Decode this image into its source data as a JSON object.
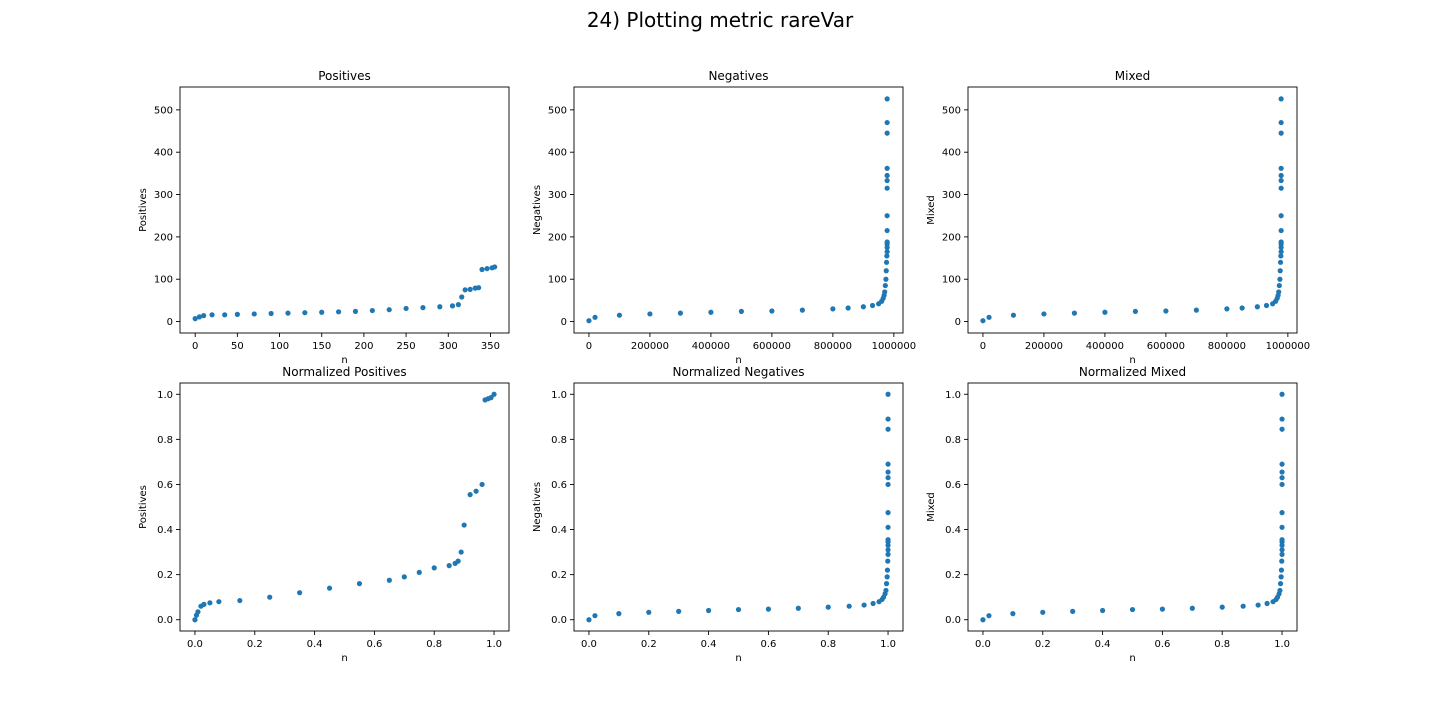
{
  "figure": {
    "suptitle": "24) Plotting metric rareVar",
    "marker_color": "#1f77b4"
  },
  "chart_data": [
    {
      "type": "scatter",
      "title": "Positives",
      "xlabel": "n",
      "ylabel": "Positives",
      "xlim": [
        -18,
        372
      ],
      "ylim": [
        -27,
        554
      ],
      "xticks": [
        0,
        50,
        100,
        150,
        200,
        250,
        300,
        350
      ],
      "xticklabels": [
        "0",
        "50",
        "100",
        "150",
        "200",
        "250",
        "300",
        "350"
      ],
      "yticks": [
        0,
        100,
        200,
        300,
        400,
        500
      ],
      "yticklabels": [
        "0",
        "100",
        "200",
        "300",
        "400",
        "500"
      ],
      "x": [
        0,
        5,
        10,
        20,
        35,
        50,
        70,
        90,
        110,
        130,
        150,
        170,
        190,
        210,
        230,
        250,
        270,
        290,
        305,
        312,
        316,
        320,
        326,
        332,
        336,
        340,
        346,
        352,
        355
      ],
      "y": [
        7,
        11,
        14,
        16,
        16,
        17,
        18,
        19,
        20,
        21,
        22,
        23,
        24,
        26,
        28,
        31,
        33,
        35,
        37,
        40,
        58,
        75,
        76,
        79,
        80,
        123,
        125,
        127,
        129
      ]
    },
    {
      "type": "scatter",
      "title": "Negatives",
      "xlabel": "n",
      "ylabel": "Negatives",
      "xlim": [
        -49000,
        1030000
      ],
      "ylim": [
        -27,
        554
      ],
      "xticks": [
        0,
        200000,
        400000,
        600000,
        800000,
        1000000
      ],
      "xticklabels": [
        "0",
        "200000",
        "400000",
        "600000",
        "800000",
        "1000000"
      ],
      "yticks": [
        0,
        100,
        200,
        300,
        400,
        500
      ],
      "yticklabels": [
        "0",
        "100",
        "200",
        "300",
        "400",
        "500"
      ],
      "x": [
        0,
        20000,
        100000,
        200000,
        300000,
        400000,
        500000,
        600000,
        700000,
        800000,
        850000,
        900000,
        930000,
        950000,
        960000,
        965000,
        968000,
        970000,
        972000,
        974000,
        975000,
        976000,
        977000,
        978000,
        978000,
        978000,
        978000,
        978000,
        978000,
        978000,
        978000,
        978000,
        978000,
        978000,
        978000,
        978000
      ],
      "y": [
        2,
        10,
        15,
        18,
        20,
        22,
        24,
        25,
        27,
        30,
        32,
        35,
        38,
        42,
        48,
        55,
        62,
        70,
        85,
        100,
        120,
        140,
        155,
        165,
        175,
        183,
        188,
        215,
        250,
        315,
        333,
        345,
        362,
        445,
        470,
        526
      ]
    },
    {
      "type": "scatter",
      "title": "Mixed",
      "xlabel": "n",
      "ylabel": "Mixed",
      "xlim": [
        -49000,
        1030000
      ],
      "ylim": [
        -27,
        554
      ],
      "xticks": [
        0,
        200000,
        400000,
        600000,
        800000,
        1000000
      ],
      "xticklabels": [
        "0",
        "200000",
        "400000",
        "600000",
        "800000",
        "1000000"
      ],
      "yticks": [
        0,
        100,
        200,
        300,
        400,
        500
      ],
      "yticklabels": [
        "0",
        "100",
        "200",
        "300",
        "400",
        "500"
      ],
      "x": [
        0,
        20000,
        100000,
        200000,
        300000,
        400000,
        500000,
        600000,
        700000,
        800000,
        850000,
        900000,
        930000,
        950000,
        960000,
        965000,
        968000,
        970000,
        972000,
        974000,
        975000,
        976000,
        977000,
        978000,
        978000,
        978000,
        978000,
        978000,
        978000,
        978000,
        978000,
        978000,
        978000,
        978000,
        978000,
        978000
      ],
      "y": [
        2,
        10,
        15,
        18,
        20,
        22,
        24,
        25,
        27,
        30,
        32,
        35,
        38,
        42,
        48,
        55,
        62,
        70,
        85,
        100,
        120,
        140,
        155,
        165,
        175,
        183,
        188,
        215,
        250,
        315,
        333,
        345,
        362,
        445,
        470,
        526
      ]
    },
    {
      "type": "scatter",
      "title": "Normalized Positives",
      "xlabel": "n",
      "ylabel": "Positives",
      "xlim": [
        -0.05,
        1.05
      ],
      "ylim": [
        -0.05,
        1.05
      ],
      "xticks": [
        0,
        0.2,
        0.4,
        0.6,
        0.8,
        1
      ],
      "xticklabels": [
        "0.0",
        "0.2",
        "0.4",
        "0.6",
        "0.8",
        "1.0"
      ],
      "yticks": [
        0,
        0.2,
        0.4,
        0.6,
        0.8,
        1
      ],
      "yticklabels": [
        "0.0",
        "0.2",
        "0.4",
        "0.6",
        "0.8",
        "1.0"
      ],
      "x": [
        0.0,
        0.005,
        0.01,
        0.02,
        0.03,
        0.05,
        0.08,
        0.15,
        0.25,
        0.35,
        0.45,
        0.55,
        0.65,
        0.7,
        0.75,
        0.8,
        0.85,
        0.87,
        0.88,
        0.89,
        0.9,
        0.92,
        0.94,
        0.96,
        0.97,
        0.98,
        0.99,
        1.0
      ],
      "y": [
        0.0,
        0.02,
        0.035,
        0.06,
        0.068,
        0.075,
        0.08,
        0.085,
        0.1,
        0.12,
        0.14,
        0.16,
        0.175,
        0.19,
        0.21,
        0.23,
        0.24,
        0.25,
        0.26,
        0.3,
        0.42,
        0.555,
        0.57,
        0.6,
        0.975,
        0.98,
        0.985,
        1.0
      ]
    },
    {
      "type": "scatter",
      "title": "Normalized Negatives",
      "xlabel": "n",
      "ylabel": "Negatives",
      "xlim": [
        -0.05,
        1.05
      ],
      "ylim": [
        -0.05,
        1.05
      ],
      "xticks": [
        0,
        0.2,
        0.4,
        0.6,
        0.8,
        1
      ],
      "xticklabels": [
        "0.0",
        "0.2",
        "0.4",
        "0.6",
        "0.8",
        "1.0"
      ],
      "yticks": [
        0,
        0.2,
        0.4,
        0.6,
        0.8,
        1
      ],
      "yticklabels": [
        "0.0",
        "0.2",
        "0.4",
        "0.6",
        "0.8",
        "1.0"
      ],
      "x": [
        0.0,
        0.02,
        0.1,
        0.2,
        0.3,
        0.4,
        0.5,
        0.6,
        0.7,
        0.8,
        0.87,
        0.92,
        0.95,
        0.97,
        0.98,
        0.985,
        0.99,
        0.993,
        0.995,
        0.997,
        0.998,
        0.999,
        1.0,
        1.0,
        1.0,
        1.0,
        1.0,
        1.0,
        1.0,
        1.0,
        1.0,
        1.0,
        1.0,
        1.0,
        1.0,
        1.0
      ],
      "y": [
        0.0,
        0.018,
        0.027,
        0.033,
        0.037,
        0.041,
        0.045,
        0.047,
        0.051,
        0.056,
        0.06,
        0.065,
        0.072,
        0.08,
        0.09,
        0.1,
        0.115,
        0.13,
        0.16,
        0.19,
        0.22,
        0.26,
        0.29,
        0.31,
        0.33,
        0.345,
        0.355,
        0.41,
        0.475,
        0.6,
        0.63,
        0.655,
        0.69,
        0.845,
        0.89,
        1.0
      ]
    },
    {
      "type": "scatter",
      "title": "Normalized Mixed",
      "xlabel": "n",
      "ylabel": "Mixed",
      "xlim": [
        -0.05,
        1.05
      ],
      "ylim": [
        -0.05,
        1.05
      ],
      "xticks": [
        0,
        0.2,
        0.4,
        0.6,
        0.8,
        1
      ],
      "xticklabels": [
        "0.0",
        "0.2",
        "0.4",
        "0.6",
        "0.8",
        "1.0"
      ],
      "yticks": [
        0,
        0.2,
        0.4,
        0.6,
        0.8,
        1
      ],
      "yticklabels": [
        "0.0",
        "0.2",
        "0.4",
        "0.6",
        "0.8",
        "1.0"
      ],
      "x": [
        0.0,
        0.02,
        0.1,
        0.2,
        0.3,
        0.4,
        0.5,
        0.6,
        0.7,
        0.8,
        0.87,
        0.92,
        0.95,
        0.97,
        0.98,
        0.985,
        0.99,
        0.993,
        0.995,
        0.997,
        0.998,
        0.999,
        1.0,
        1.0,
        1.0,
        1.0,
        1.0,
        1.0,
        1.0,
        1.0,
        1.0,
        1.0,
        1.0,
        1.0,
        1.0,
        1.0
      ],
      "y": [
        0.0,
        0.018,
        0.027,
        0.033,
        0.037,
        0.041,
        0.045,
        0.047,
        0.051,
        0.056,
        0.06,
        0.065,
        0.072,
        0.08,
        0.09,
        0.1,
        0.115,
        0.13,
        0.16,
        0.19,
        0.22,
        0.26,
        0.29,
        0.31,
        0.33,
        0.345,
        0.355,
        0.41,
        0.475,
        0.6,
        0.63,
        0.655,
        0.69,
        0.845,
        0.89,
        1.0
      ]
    }
  ]
}
